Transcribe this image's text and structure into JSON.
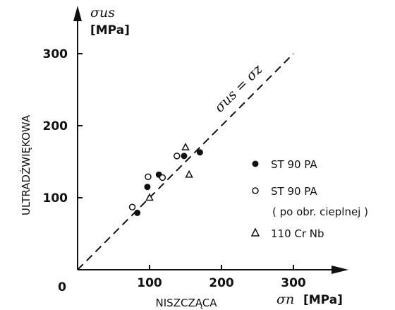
{
  "chart_data": {
    "type": "scatter",
    "xlim": [
      0,
      350
    ],
    "ylim": [
      0,
      350
    ],
    "x_ticks": [
      {
        "value": 100,
        "label": "100"
      },
      {
        "value": 200,
        "label": "200"
      },
      {
        "value": 300,
        "label": "300"
      }
    ],
    "y_ticks": [
      {
        "value": 100,
        "label": "100"
      },
      {
        "value": 200,
        "label": "200"
      },
      {
        "value": 300,
        "label": "300"
      }
    ],
    "origin_label": "0",
    "xlabel": "NISZCZĄCA",
    "ylabel": "ULTRADŹWIĘKOWA",
    "x_symbol": "σn",
    "x_unit": "[MPa]",
    "y_symbol": "σus",
    "y_unit": "[MPa]",
    "line_label": "σus = σz",
    "reference_line": {
      "from": [
        0,
        0
      ],
      "to": [
        300,
        300
      ],
      "style": "dashed"
    },
    "series": [
      {
        "name": "ST 90 PA",
        "marker": "filled-circle",
        "points": [
          [
            83,
            79
          ],
          [
            97,
            115
          ],
          [
            113,
            132
          ],
          [
            148,
            158
          ],
          [
            170,
            163
          ]
        ]
      },
      {
        "name": "ST 90 PA",
        "marker": "open-circle",
        "note": "( po obr. cieplnej )",
        "points": [
          [
            76,
            87
          ],
          [
            98,
            129
          ],
          [
            118,
            128
          ],
          [
            138,
            158
          ]
        ]
      },
      {
        "name": "110 Cr Nb",
        "marker": "open-triangle",
        "points": [
          [
            100,
            100
          ],
          [
            150,
            170
          ],
          [
            155,
            132
          ]
        ]
      }
    ],
    "legend_placement": "right"
  },
  "colors": {
    "ink": "#111111",
    "background": "#ffffff"
  }
}
